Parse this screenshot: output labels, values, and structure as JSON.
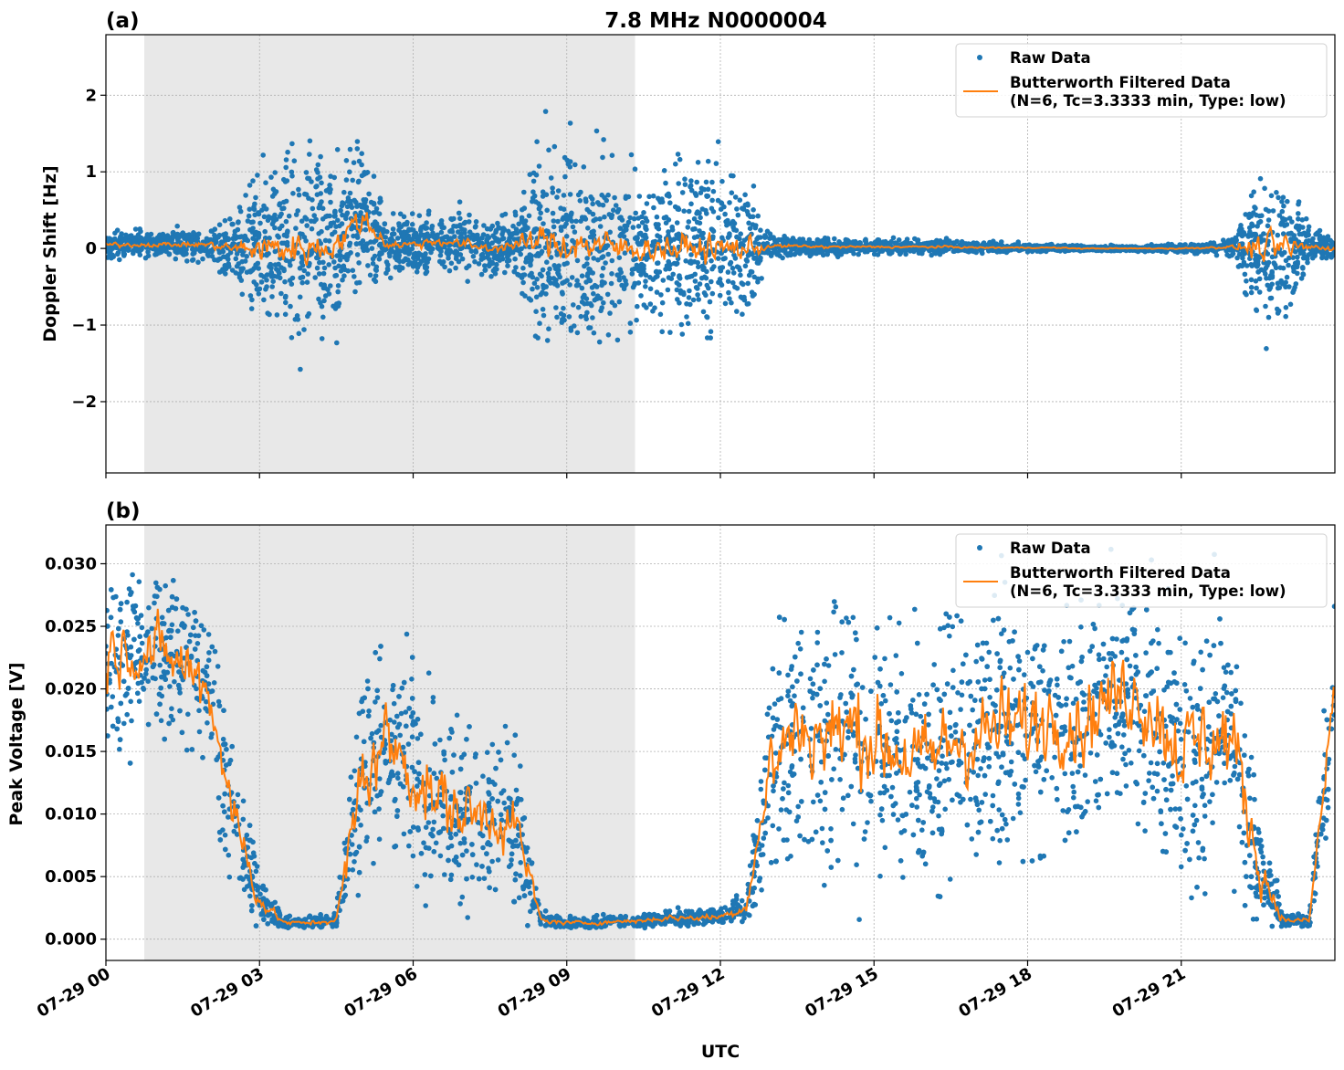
{
  "chart_data": [
    {
      "type": "scatter",
      "panel_label": "(a)",
      "title": "7.8 MHz N0000004",
      "ylabel": "Doppler Shift [Hz]",
      "xlabel": "",
      "xlim": [
        "07-29 00:00",
        "07-30 00:00"
      ],
      "ylim": [
        -2.93,
        2.79
      ],
      "yticks": [
        2,
        1,
        0,
        -1,
        -2
      ],
      "ytick_labels": [
        "2",
        "1",
        "0",
        "−1",
        "−2"
      ],
      "grid": true,
      "legend": {
        "placement": "top-right",
        "entries": [
          "Raw Data",
          "Butterworth Filtered Data",
          "(N=6, Tc=3.3333 min, Type: low)"
        ]
      },
      "shaded_region": [
        "07-29 00:45",
        "07-29 10:20"
      ],
      "envelope_hours": [
        0,
        0.5,
        1,
        1.5,
        2,
        2.5,
        3,
        3.5,
        4,
        4.5,
        5,
        5.5,
        6,
        6.5,
        7,
        7.5,
        8,
        8.5,
        9,
        9.5,
        10,
        10.5,
        11,
        11.5,
        12,
        12.5,
        13,
        13.5,
        14,
        14.5,
        15,
        15.5,
        16,
        16.5,
        17,
        17.5,
        18,
        18.5,
        19,
        19.5,
        20,
        20.5,
        21,
        21.5,
        22,
        22.5,
        23,
        23.5,
        24
      ],
      "raw_center": [
        0.05,
        0.05,
        0.05,
        0.05,
        0.05,
        0,
        0,
        0,
        0,
        0.05,
        0.4,
        0.05,
        0.05,
        0.1,
        0.05,
        0,
        0.05,
        0.1,
        0.05,
        0.05,
        0,
        0,
        0,
        0,
        0,
        0,
        0.03,
        0.03,
        0.02,
        0.02,
        0.02,
        0.02,
        0.02,
        0.02,
        0.01,
        0.01,
        0.01,
        0.01,
        0,
        0,
        0,
        0,
        0,
        0.01,
        0.02,
        0,
        0,
        0.02,
        0
      ],
      "raw_spread": [
        0.15,
        0.15,
        0.15,
        0.15,
        0.2,
        0.35,
        1.0,
        1.1,
        1.0,
        0.9,
        0.9,
        0.3,
        0.3,
        0.3,
        0.35,
        0.3,
        0.35,
        1.0,
        1.2,
        1.1,
        1.0,
        0.8,
        0.9,
        0.9,
        0.9,
        0.8,
        0.12,
        0.1,
        0.1,
        0.08,
        0.08,
        0.08,
        0.08,
        0.07,
        0.06,
        0.05,
        0.04,
        0.04,
        0.03,
        0.03,
        0.03,
        0.04,
        0.05,
        0.06,
        0.1,
        0.9,
        1.0,
        0.2,
        0.15
      ],
      "series": [
        {
          "name": "Raw Data",
          "style": "dots",
          "color": "#1f77b4"
        },
        {
          "name": "Butterworth Filtered Data (N=6, Tc=3.3333 min, Type: low)",
          "style": "line",
          "color": "#ff7f0e"
        }
      ]
    },
    {
      "type": "scatter",
      "panel_label": "(b)",
      "title": "",
      "ylabel": "Peak Voltage [V]",
      "xlabel": "UTC",
      "xlim": [
        "07-29 00:00",
        "07-30 00:00"
      ],
      "ylim": [
        -0.0017,
        0.0331
      ],
      "yticks": [
        0.03,
        0.025,
        0.02,
        0.015,
        0.01,
        0.005,
        0.0
      ],
      "ytick_labels": [
        "0.030",
        "0.025",
        "0.020",
        "0.015",
        "0.010",
        "0.005",
        "0.000"
      ],
      "xticks_hours": [
        0,
        3,
        6,
        9,
        12,
        15,
        18,
        21
      ],
      "xtick_labels": [
        "07-29 00",
        "07-29 03",
        "07-29 06",
        "07-29 09",
        "07-29 12",
        "07-29 15",
        "07-29 18",
        "07-29 21"
      ],
      "grid": true,
      "legend": {
        "placement": "top-right",
        "entries": [
          "Raw Data",
          "Butterworth Filtered Data",
          "(N=6, Tc=3.3333 min, Type: low)"
        ]
      },
      "shaded_region": [
        "07-29 00:45",
        "07-29 10:20"
      ],
      "envelope_hours": [
        0,
        0.5,
        1,
        1.5,
        2,
        2.5,
        3,
        3.5,
        4,
        4.5,
        5,
        5.5,
        6,
        6.5,
        7,
        7.5,
        8,
        8.5,
        9,
        9.5,
        10,
        10.5,
        11,
        11.5,
        12,
        12.5,
        13,
        13.5,
        14,
        14.5,
        15,
        15.5,
        16,
        16.5,
        17,
        17.5,
        18,
        18.5,
        19,
        19.5,
        20,
        20.5,
        21,
        21.5,
        22,
        22.5,
        23,
        23.5,
        24
      ],
      "raw_center": [
        0.023,
        0.023,
        0.023,
        0.022,
        0.02,
        0.01,
        0.003,
        0.0013,
        0.0013,
        0.0015,
        0.013,
        0.016,
        0.013,
        0.011,
        0.01,
        0.01,
        0.009,
        0.0015,
        0.0013,
        0.0013,
        0.0014,
        0.0015,
        0.0017,
        0.0017,
        0.0018,
        0.0025,
        0.014,
        0.017,
        0.016,
        0.017,
        0.016,
        0.015,
        0.014,
        0.016,
        0.016,
        0.017,
        0.017,
        0.018,
        0.017,
        0.019,
        0.02,
        0.018,
        0.015,
        0.016,
        0.016,
        0.006,
        0.0015,
        0.0015,
        0.02
      ],
      "raw_spread": [
        0.006,
        0.006,
        0.006,
        0.006,
        0.006,
        0.005,
        0.002,
        0.0004,
        0.0004,
        0.0006,
        0.008,
        0.008,
        0.007,
        0.007,
        0.006,
        0.006,
        0.006,
        0.0005,
        0.0004,
        0.0004,
        0.0004,
        0.0005,
        0.0006,
        0.0006,
        0.0006,
        0.001,
        0.008,
        0.009,
        0.009,
        0.009,
        0.009,
        0.009,
        0.009,
        0.009,
        0.009,
        0.009,
        0.009,
        0.008,
        0.008,
        0.008,
        0.008,
        0.009,
        0.009,
        0.009,
        0.009,
        0.005,
        0.0005,
        0.0005,
        0.008
      ],
      "series": [
        {
          "name": "Raw Data",
          "style": "dots",
          "color": "#1f77b4"
        },
        {
          "name": "Butterworth Filtered Data (N=6, Tc=3.3333 min, Type: low)",
          "style": "line",
          "color": "#ff7f0e"
        }
      ]
    }
  ]
}
